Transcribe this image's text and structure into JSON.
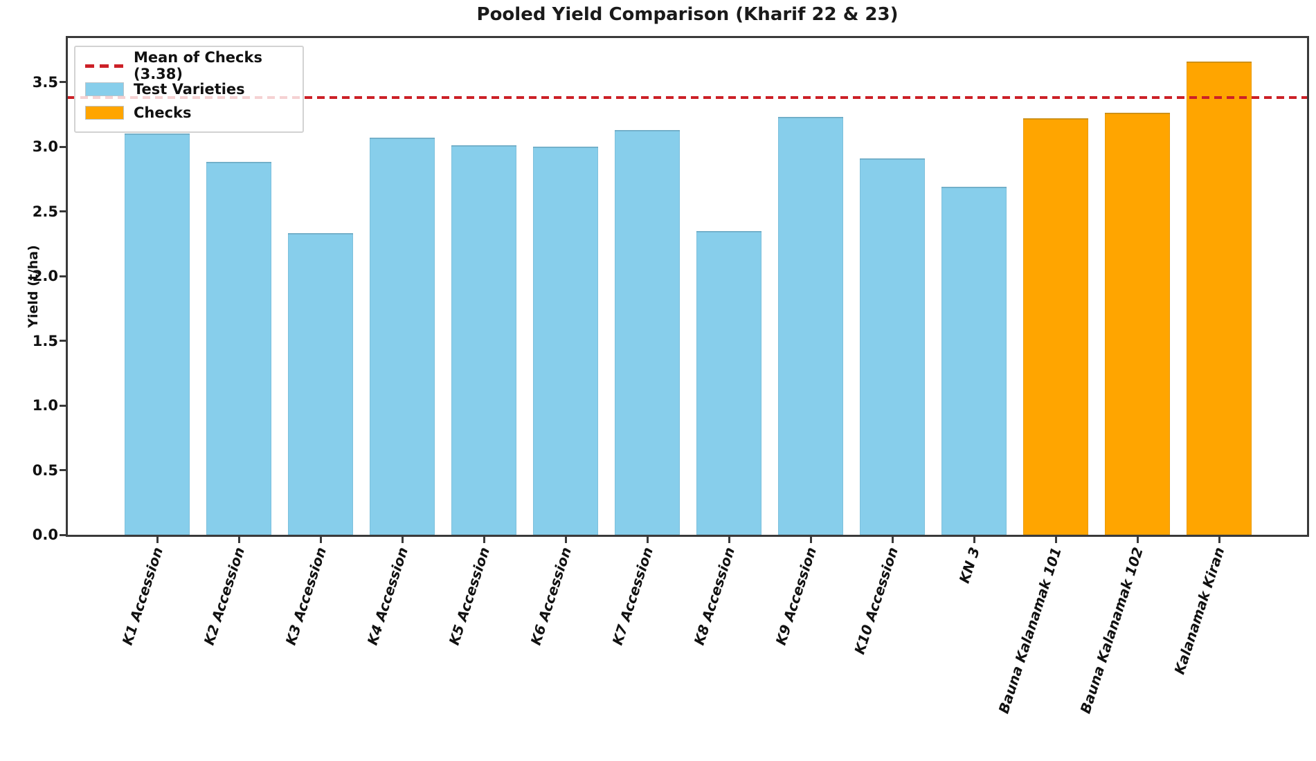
{
  "chart_data": {
    "type": "bar",
    "title": "Pooled Yield Comparison (Kharif 22 & 23)",
    "xlabel": "",
    "ylabel": "Yield (t/ha)",
    "categories": [
      "K1 Accession",
      "K2 Accession",
      "K3 Accession",
      "K4 Accession",
      "K5 Accession",
      "K6 Accession",
      "K7 Accession",
      "K8 Accession",
      "K9 Accession",
      "K10 Accession",
      "KN 3",
      "Bauna Kalanamak 101",
      "Bauna Kalanamak 102",
      "Kalanamak Kiran"
    ],
    "values": [
      3.1,
      2.88,
      2.33,
      3.07,
      3.01,
      3.0,
      3.13,
      2.35,
      3.23,
      2.91,
      2.69,
      3.22,
      3.26,
      3.66
    ],
    "groups": [
      "test",
      "test",
      "test",
      "test",
      "test",
      "test",
      "test",
      "test",
      "test",
      "test",
      "test",
      "check",
      "check",
      "check"
    ],
    "group_colors": {
      "test": "#87CEEB",
      "check": "#FFA500"
    },
    "ylim": [
      0,
      3.84
    ],
    "yticks": [
      0.0,
      0.5,
      1.0,
      1.5,
      2.0,
      2.5,
      3.0,
      3.5
    ],
    "grid": false,
    "mean_line": {
      "value": 3.38,
      "color": "#cc2027",
      "style": "dashed",
      "label": "Mean of Checks (3.38)"
    },
    "legend": {
      "position": "upper-left",
      "items": [
        {
          "label": "Mean of Checks (3.38)",
          "swatch": "dashed-line",
          "color": "#cc2027"
        },
        {
          "label": "Test Varieties",
          "swatch": "patch",
          "color": "#87CEEB"
        },
        {
          "label": "Checks",
          "swatch": "patch",
          "color": "#FFA500"
        }
      ]
    }
  }
}
